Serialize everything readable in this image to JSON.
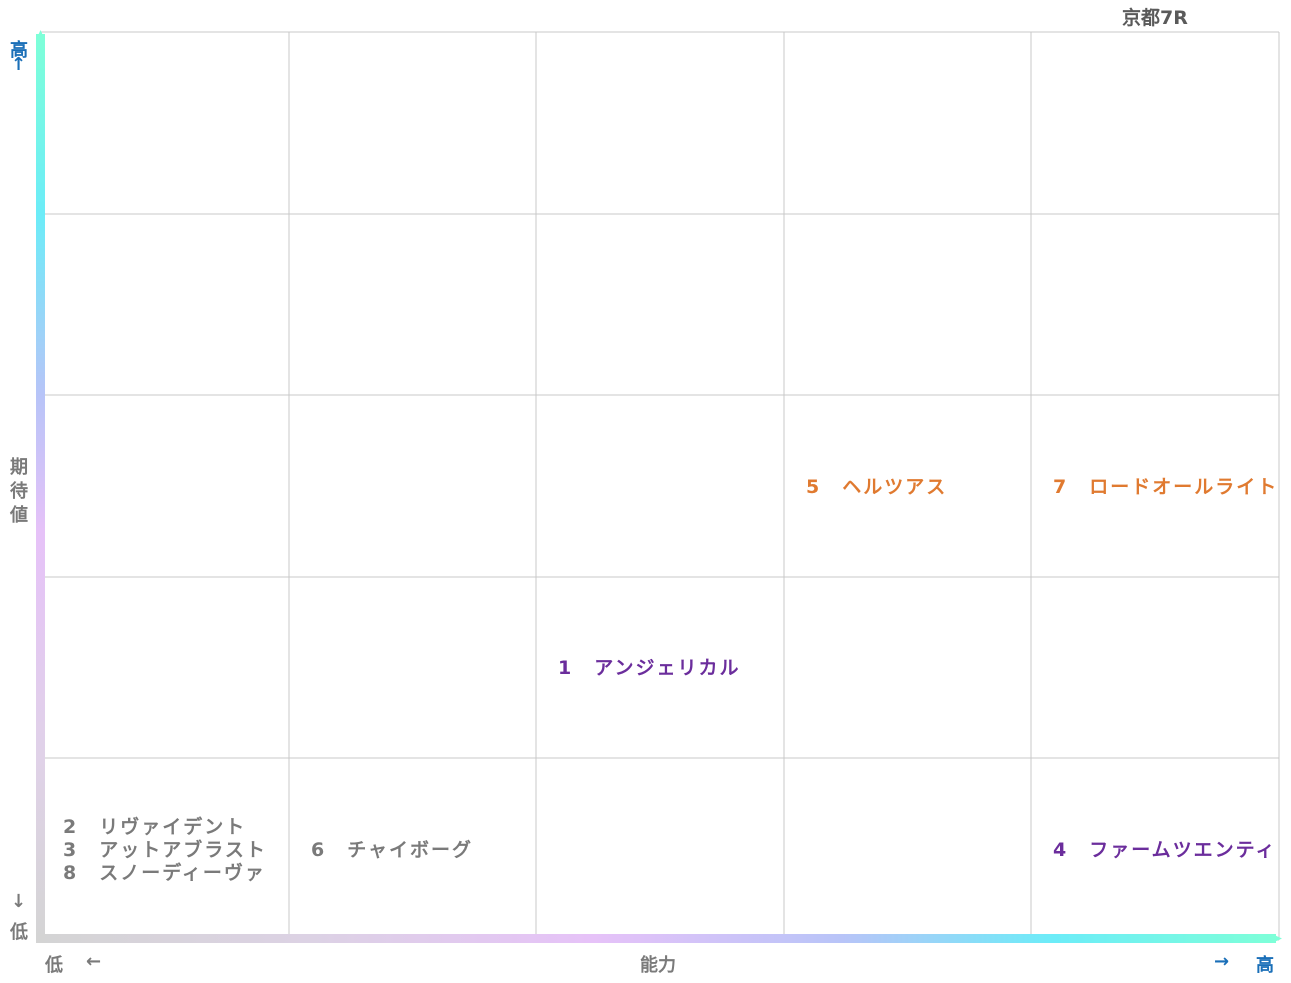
{
  "title": "京都7R",
  "y_axis": {
    "label": [
      "期",
      "待",
      "値"
    ],
    "high": "高",
    "high_arrow": "↑",
    "low": "低",
    "low_arrow": "↓"
  },
  "x_axis": {
    "label": "能力",
    "low": "低",
    "low_arrow": "←",
    "high": "高",
    "high_arrow": "→"
  },
  "colors": {
    "gray_text": "#7a7a7a",
    "orange": "#e07a30",
    "purple": "#6b2d9c",
    "blue_text": "#1a6fb8",
    "grid": "#c8c8c8"
  },
  "entries": [
    {
      "col": 1,
      "row": 5,
      "color": "gray",
      "lines": [
        "2　リヴァイデント",
        "3　アットアブラスト",
        "8　スノーディーヴァ"
      ]
    },
    {
      "col": 2,
      "row": 5,
      "color": "gray",
      "lines": [
        "6　チャイボーグ"
      ]
    },
    {
      "col": 3,
      "row": 4,
      "color": "purple",
      "lines": [
        "1　アンジェリカル"
      ]
    },
    {
      "col": 4,
      "row": 3,
      "color": "orange",
      "lines": [
        "5　ヘルツアス"
      ]
    },
    {
      "col": 5,
      "row": 3,
      "color": "orange",
      "lines": [
        "7　ロードオールライト"
      ]
    },
    {
      "col": 5,
      "row": 5,
      "color": "purple",
      "lines": [
        "4　ファームツエンティ"
      ]
    }
  ]
}
